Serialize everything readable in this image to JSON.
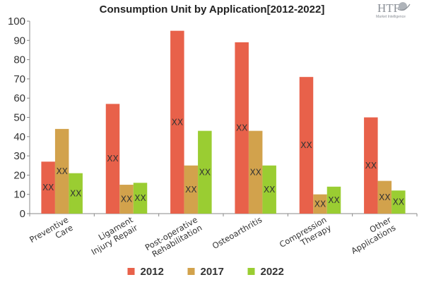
{
  "chart_data": {
    "type": "bar",
    "title": "Consumption Unit by  Application[2012-2022]",
    "xlabel": "",
    "ylabel": "",
    "categories": [
      [
        "Preventive",
        "Care"
      ],
      [
        "Ligament",
        "Injury Repair"
      ],
      [
        "Post-operative",
        "Rehabilitation"
      ],
      [
        "Osteoarthritis"
      ],
      [
        "Compression",
        "Therapy"
      ],
      [
        "Other",
        "Applications"
      ]
    ],
    "series": [
      {
        "name": "2012",
        "color": "#E8614A",
        "values": [
          27,
          57,
          95,
          89,
          71,
          50
        ]
      },
      {
        "name": "2017",
        "color": "#D2A24C",
        "values": [
          44,
          15,
          25,
          43,
          10,
          17
        ]
      },
      {
        "name": "2022",
        "color": "#9ACD32",
        "values": [
          21,
          16,
          43,
          25,
          14,
          12
        ]
      }
    ],
    "data_label": "XX",
    "ylim": [
      0,
      100
    ],
    "yticks": [
      0,
      10,
      20,
      30,
      40,
      50,
      60,
      70,
      80,
      90,
      100
    ],
    "grid": false,
    "legend_position": "bottom-center"
  },
  "logo": {
    "main": "HTF",
    "sub": "Market Intelligence"
  }
}
